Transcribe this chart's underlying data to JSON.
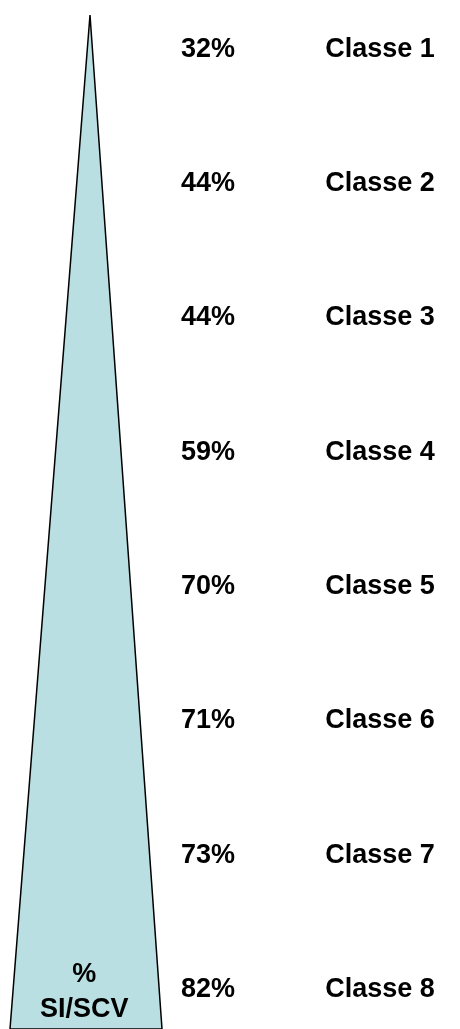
{
  "chart_data": {
    "type": "other",
    "categories": [
      "Classe 1",
      "Classe 2",
      "Classe 3",
      "Classe 4",
      "Classe 5",
      "Classe 6",
      "Classe 7",
      "Classe 8"
    ],
    "values": [
      32,
      44,
      44,
      59,
      70,
      71,
      73,
      82
    ],
    "value_labels": [
      "32%",
      "44%",
      "44%",
      "59%",
      "70%",
      "71%",
      "73%",
      "82%"
    ],
    "annotations": [
      "%\nSI/SCV"
    ]
  }
}
